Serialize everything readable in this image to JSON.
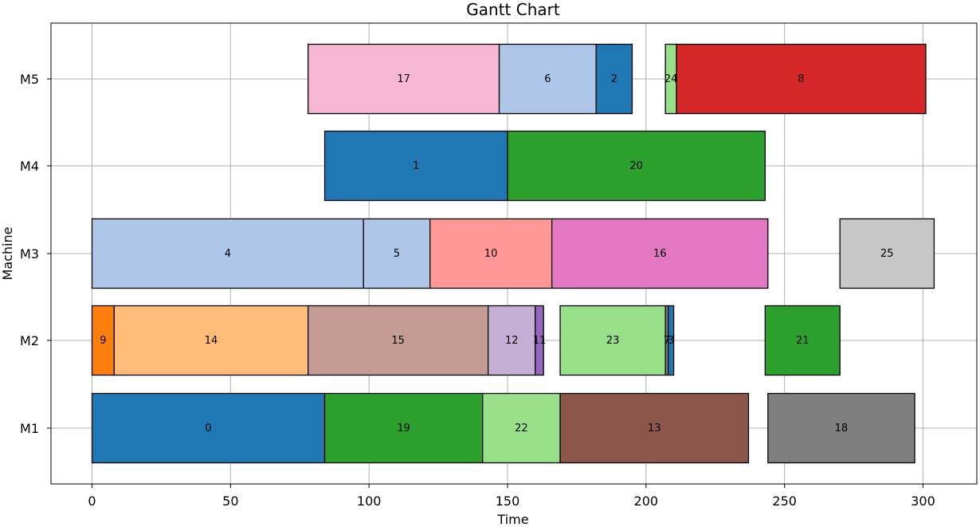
{
  "chart_data": {
    "type": "gantt",
    "title": "Gantt Chart",
    "xlabel": "Time",
    "ylabel": "Machine",
    "xlim": [
      -15,
      320
    ],
    "xticks": [
      0,
      50,
      100,
      150,
      200,
      250,
      300
    ],
    "machines": [
      "M1",
      "M2",
      "M3",
      "M4",
      "M5"
    ],
    "grid": true,
    "tasks": [
      {
        "label": "0",
        "machine": "M1",
        "start": 0,
        "end": 84,
        "color": "#1f77b4"
      },
      {
        "label": "19",
        "machine": "M1",
        "start": 84,
        "end": 141,
        "color": "#2ca02c"
      },
      {
        "label": "22",
        "machine": "M1",
        "start": 141,
        "end": 169,
        "color": "#98df8a"
      },
      {
        "label": "13",
        "machine": "M1",
        "start": 169,
        "end": 237,
        "color": "#8c564b"
      },
      {
        "label": "18",
        "machine": "M1",
        "start": 244,
        "end": 297,
        "color": "#7f7f7f"
      },
      {
        "label": "9",
        "machine": "M2",
        "start": 0,
        "end": 8,
        "color": "#ff7f0e"
      },
      {
        "label": "14",
        "machine": "M2",
        "start": 8,
        "end": 78,
        "color": "#ffbb78"
      },
      {
        "label": "15",
        "machine": "M2",
        "start": 78,
        "end": 143,
        "color": "#c49c94"
      },
      {
        "label": "12",
        "machine": "M2",
        "start": 143,
        "end": 160,
        "color": "#c5b0d5"
      },
      {
        "label": "11",
        "machine": "M2",
        "start": 160,
        "end": 163,
        "color": "#9467bd"
      },
      {
        "label": "23",
        "machine": "M2",
        "start": 169,
        "end": 207,
        "color": "#98df8a"
      },
      {
        "label": "7",
        "machine": "M2",
        "start": 207,
        "end": 208,
        "color": "#7f7f7f"
      },
      {
        "label": "3",
        "machine": "M2",
        "start": 208,
        "end": 210,
        "color": "#1f77b4"
      },
      {
        "label": "21",
        "machine": "M2",
        "start": 243,
        "end": 270,
        "color": "#2ca02c"
      },
      {
        "label": "4",
        "machine": "M3",
        "start": 0,
        "end": 98,
        "color": "#aec7e8"
      },
      {
        "label": "5",
        "machine": "M3",
        "start": 98,
        "end": 122,
        "color": "#aec7e8"
      },
      {
        "label": "10",
        "machine": "M3",
        "start": 122,
        "end": 166,
        "color": "#ff9896"
      },
      {
        "label": "16",
        "machine": "M3",
        "start": 166,
        "end": 244,
        "color": "#e377c2"
      },
      {
        "label": "25",
        "machine": "M3",
        "start": 270,
        "end": 304,
        "color": "#c7c7c7"
      },
      {
        "label": "1",
        "machine": "M4",
        "start": 84,
        "end": 150,
        "color": "#1f77b4"
      },
      {
        "label": "20",
        "machine": "M4",
        "start": 150,
        "end": 243,
        "color": "#2ca02c"
      },
      {
        "label": "17",
        "machine": "M5",
        "start": 78,
        "end": 147,
        "color": "#f7b6d2"
      },
      {
        "label": "6",
        "machine": "M5",
        "start": 147,
        "end": 182,
        "color": "#aec7e8"
      },
      {
        "label": "2",
        "machine": "M5",
        "start": 182,
        "end": 195,
        "color": "#1f77b4"
      },
      {
        "label": "24",
        "machine": "M5",
        "start": 207,
        "end": 211,
        "color": "#98df8a"
      },
      {
        "label": "8",
        "machine": "M5",
        "start": 211,
        "end": 301,
        "color": "#d62728"
      }
    ]
  }
}
